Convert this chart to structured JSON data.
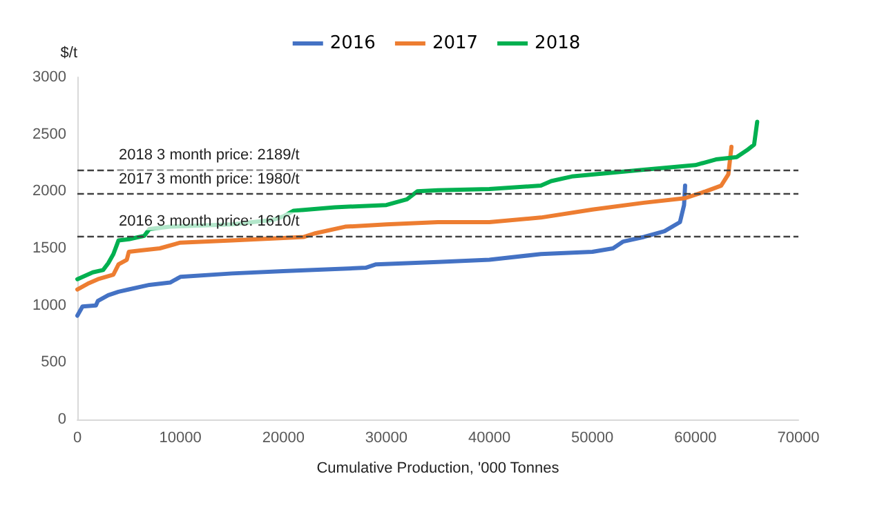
{
  "chart_data": {
    "type": "line",
    "xlabel": "Cumulative Production, '000 Tonnes",
    "ylabel": "$/t",
    "xlim": [
      0,
      70000
    ],
    "xticks": [
      0,
      10000,
      20000,
      30000,
      40000,
      50000,
      60000,
      70000
    ],
    "ylim": [
      0,
      3000
    ],
    "yticks": [
      0,
      500,
      1000,
      1500,
      2000,
      2500,
      3000
    ],
    "grid": false,
    "legend": "top",
    "marker": "none",
    "line_style": "solid",
    "series": [
      {
        "name": "2016",
        "color": "#4472c4",
        "x": [
          0,
          500,
          1800,
          2000,
          3000,
          4000,
          5000,
          7000,
          9000,
          10000,
          15000,
          20000,
          28000,
          29000,
          35000,
          40000,
          45000,
          50000,
          52000,
          53000,
          55000,
          57000,
          58500,
          58900,
          59000
        ],
        "values": [
          910,
          990,
          1000,
          1040,
          1090,
          1120,
          1140,
          1180,
          1200,
          1250,
          1280,
          1300,
          1330,
          1360,
          1380,
          1400,
          1450,
          1470,
          1500,
          1560,
          1600,
          1650,
          1730,
          1880,
          2050
        ]
      },
      {
        "name": "2017",
        "color": "#ed7d31",
        "x": [
          0,
          1000,
          2000,
          3500,
          4000,
          4800,
          5000,
          6000,
          8000,
          10000,
          15000,
          20000,
          22000,
          23000,
          26000,
          30000,
          35000,
          40000,
          45000,
          50000,
          55000,
          59000,
          61000,
          62500,
          63200,
          63500
        ],
        "values": [
          1140,
          1190,
          1230,
          1270,
          1360,
          1400,
          1470,
          1480,
          1500,
          1550,
          1570,
          1590,
          1600,
          1630,
          1690,
          1710,
          1730,
          1730,
          1770,
          1840,
          1900,
          1940,
          2000,
          2050,
          2150,
          2390
        ]
      },
      {
        "name": "2018",
        "color": "#00b050",
        "x": [
          0,
          1500,
          2500,
          3000,
          3500,
          4000,
          5000,
          6500,
          7000,
          9000,
          15000,
          19000,
          20000,
          21000,
          25000,
          30000,
          32000,
          33000,
          35000,
          40000,
          45000,
          46000,
          48000,
          55000,
          60000,
          62000,
          64000,
          65000,
          65700,
          66000
        ],
        "values": [
          1230,
          1290,
          1310,
          1370,
          1450,
          1570,
          1580,
          1610,
          1670,
          1690,
          1710,
          1750,
          1780,
          1830,
          1860,
          1880,
          1930,
          2000,
          2010,
          2020,
          2050,
          2090,
          2130,
          2190,
          2230,
          2280,
          2300,
          2360,
          2410,
          2610
        ]
      }
    ],
    "ref_lines": [
      {
        "axis": "y",
        "value": 2189,
        "label": "2018 3 month price: 2189/t",
        "color": "#404040",
        "line_style": "dashed"
      },
      {
        "axis": "y",
        "value": 1980,
        "label": "2017 3 month price: 1980/t",
        "color": "#404040",
        "line_style": "dashed"
      },
      {
        "axis": "y",
        "value": 1610,
        "label": "2016 3 month price: 1610/t",
        "color": "#404040",
        "line_style": "dashed"
      }
    ]
  }
}
